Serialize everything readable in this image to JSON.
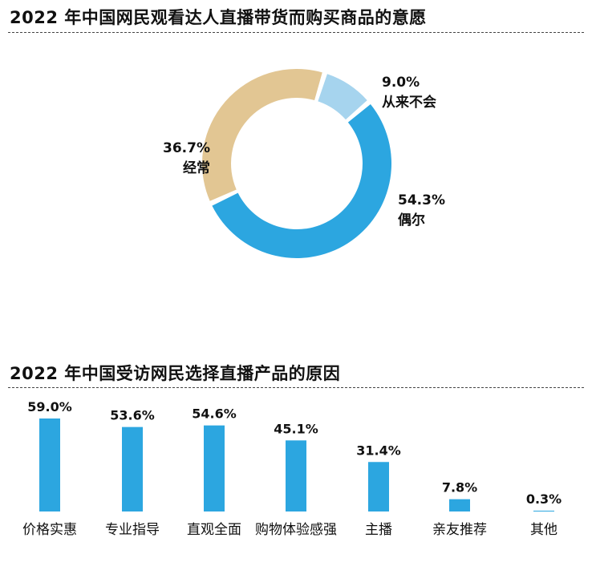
{
  "donut_title": "2022 年中国网民观看达人直播带货而购买商品的意愿",
  "bar_title": "2022 年中国受访网民选择直播产品的原因",
  "chart_data": [
    {
      "type": "pie",
      "title": "2022 年中国网民观看达人直播带货而购买商品的意愿",
      "slices": [
        {
          "label": "从来不会",
          "value": 9.0,
          "value_label": "9.0%",
          "color": "#a6d4ee"
        },
        {
          "label": "偶尔",
          "value": 54.3,
          "value_label": "54.3%",
          "color": "#2ca6e0"
        },
        {
          "label": "经常",
          "value": 36.7,
          "value_label": "36.7%",
          "color": "#e2c693"
        }
      ]
    },
    {
      "type": "bar",
      "title": "2022 年中国受访网民选择直播产品的原因",
      "categories": [
        "价格实惠",
        "专业指导",
        "直观全面",
        "购物体验感强",
        "主播",
        "亲友推荐",
        "其他"
      ],
      "values": [
        59.0,
        53.6,
        54.6,
        45.1,
        31.4,
        7.8,
        0.3
      ],
      "value_labels": [
        "59.0%",
        "53.6%",
        "54.6%",
        "45.1%",
        "31.4%",
        "7.8%",
        "0.3%"
      ],
      "color": "#2ca6e0",
      "ylim": [
        0,
        59.0
      ]
    }
  ]
}
